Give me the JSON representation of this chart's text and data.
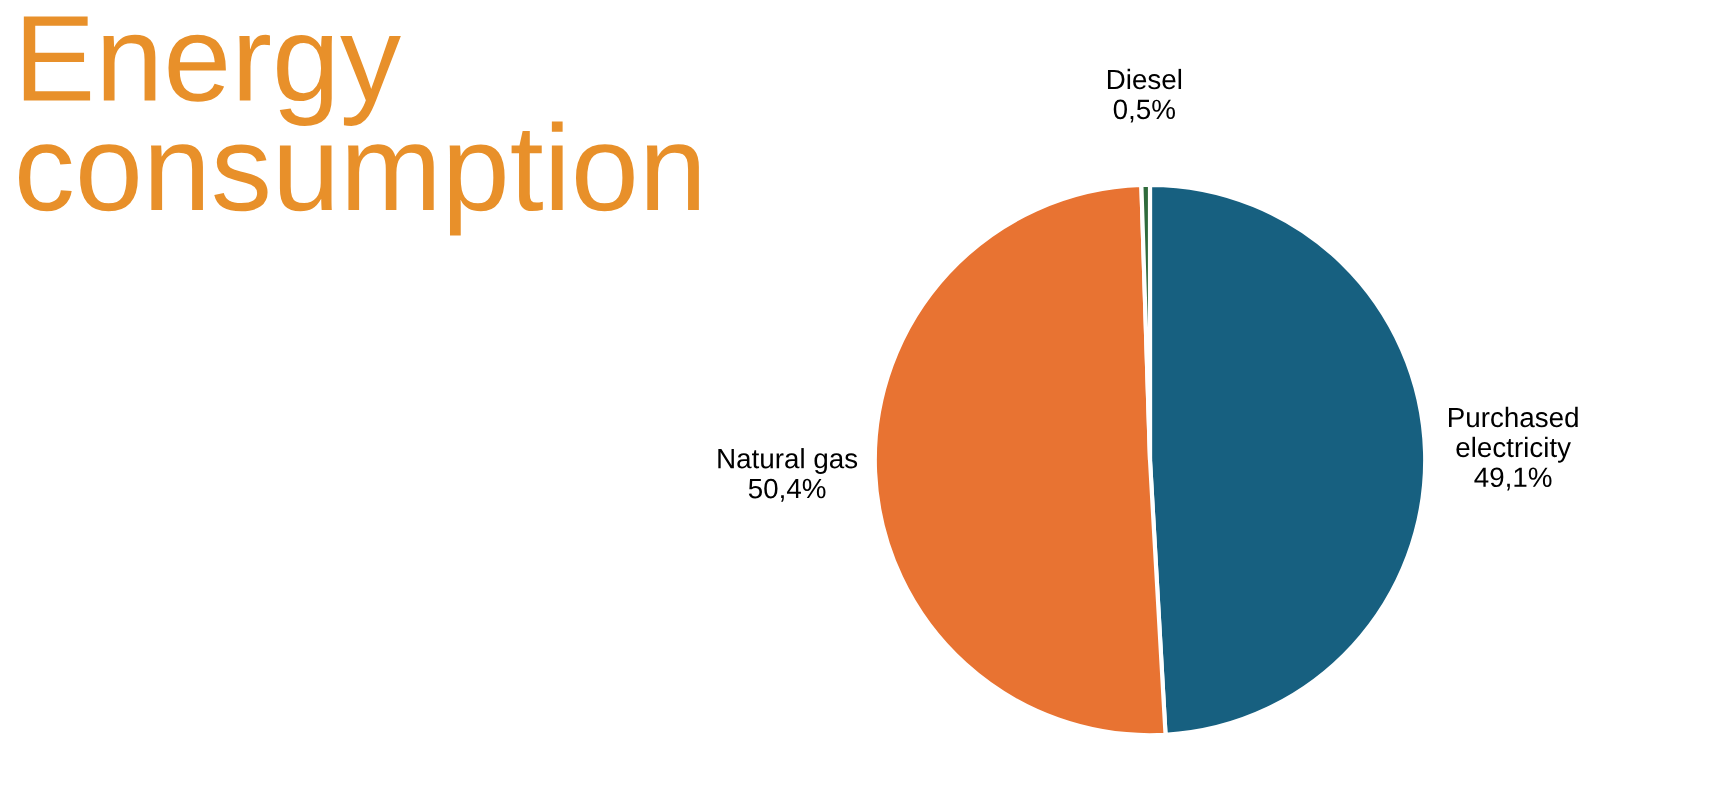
{
  "chart_data": {
    "type": "pie",
    "title": "Energy\nconsumption",
    "categories": [
      "Purchased\nelectricity",
      "Natural gas",
      "Diesel"
    ],
    "values": [
      49.1,
      50.4,
      0.5
    ],
    "value_labels": [
      "49,1%",
      "50,4%",
      "0,5%"
    ],
    "colors": [
      "#176080",
      "#e87332",
      "#2f6b3c"
    ],
    "legend": false
  }
}
